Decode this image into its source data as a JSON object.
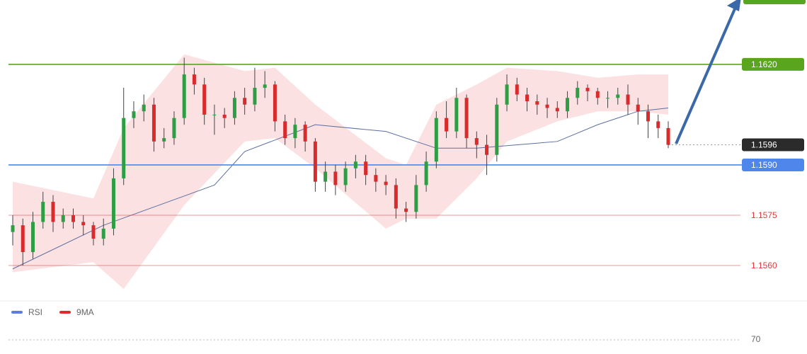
{
  "chart_data": {
    "type": "candlestick",
    "open": [
      1.157,
      1.1572,
      1.1564,
      1.1573,
      1.1579,
      1.1573,
      1.1575,
      1.1573,
      1.1572,
      1.1568,
      1.1571,
      1.1586,
      1.1604,
      1.1606,
      1.1608,
      1.1597,
      1.1598,
      1.1604,
      1.1617,
      1.1614,
      1.1605,
      1.1605,
      1.1604,
      1.161,
      1.1608,
      1.1613,
      1.1614,
      1.1603,
      1.1598,
      1.1602,
      1.1597,
      1.1585,
      1.1588,
      1.1584,
      1.1589,
      1.1591,
      1.1587,
      1.1585,
      1.1584,
      1.1577,
      1.1576,
      1.1584,
      1.1591,
      1.1604,
      1.16,
      1.161,
      1.1598,
      1.1596,
      1.1593,
      1.1608,
      1.1614,
      1.1611,
      1.1609,
      1.1608,
      1.1607,
      1.1606,
      1.161,
      1.1613,
      1.1612,
      1.161,
      1.161,
      1.1611,
      1.1608,
      1.1606,
      1.1603,
      1.1601
    ],
    "high": [
      1.1575,
      1.1574,
      1.1576,
      1.1582,
      1.1581,
      1.1577,
      1.1577,
      1.1575,
      1.1573,
      1.1574,
      1.1589,
      1.1613,
      1.1609,
      1.1611,
      1.161,
      1.1601,
      1.1606,
      1.1622,
      1.1619,
      1.1616,
      1.1608,
      1.1607,
      1.1612,
      1.1613,
      1.1619,
      1.1618,
      1.1615,
      1.1605,
      1.1604,
      1.1603,
      1.1598,
      1.1591,
      1.159,
      1.1591,
      1.1593,
      1.1593,
      1.1589,
      1.1587,
      1.1586,
      1.1579,
      1.1587,
      1.1594,
      1.1606,
      1.1609,
      1.1613,
      1.1611,
      1.16,
      1.1599,
      1.161,
      1.1617,
      1.1616,
      1.1613,
      1.1611,
      1.161,
      1.1609,
      1.1612,
      1.1615,
      1.1614,
      1.1613,
      1.1612,
      1.1613,
      1.1614,
      1.161,
      1.1608,
      1.1605,
      1.1603
    ],
    "low": [
      1.1566,
      1.156,
      1.1562,
      1.1571,
      1.157,
      1.1571,
      1.1571,
      1.1569,
      1.1566,
      1.1566,
      1.1569,
      1.1584,
      1.1601,
      1.1603,
      1.1594,
      1.1595,
      1.1596,
      1.1602,
      1.1611,
      1.1602,
      1.1599,
      1.1601,
      1.1602,
      1.1605,
      1.1606,
      1.161,
      1.16,
      1.1596,
      1.1595,
      1.1594,
      1.1582,
      1.1582,
      1.1581,
      1.1582,
      1.1586,
      1.1584,
      1.1582,
      1.1581,
      1.1574,
      1.1573,
      1.1574,
      1.1582,
      1.1589,
      1.1598,
      1.1598,
      1.1595,
      1.1592,
      1.1587,
      1.1591,
      1.1606,
      1.1609,
      1.1606,
      1.1605,
      1.1604,
      1.1604,
      1.1604,
      1.1608,
      1.1609,
      1.1608,
      1.1607,
      1.1608,
      1.1605,
      1.1602,
      1.1598,
      1.1598,
      1.1595
    ],
    "close": [
      1.1572,
      1.1564,
      1.1573,
      1.1579,
      1.1573,
      1.1575,
      1.1573,
      1.1572,
      1.1568,
      1.1571,
      1.1586,
      1.1604,
      1.1606,
      1.1608,
      1.1597,
      1.1598,
      1.1604,
      1.1617,
      1.1614,
      1.1605,
      1.1605,
      1.1604,
      1.161,
      1.1608,
      1.1613,
      1.1614,
      1.1603,
      1.1598,
      1.1602,
      1.1597,
      1.1585,
      1.1588,
      1.1584,
      1.1589,
      1.1591,
      1.1587,
      1.1585,
      1.1584,
      1.1577,
      1.1576,
      1.1584,
      1.1591,
      1.1604,
      1.16,
      1.161,
      1.1598,
      1.1596,
      1.1593,
      1.1608,
      1.1614,
      1.1611,
      1.1609,
      1.1608,
      1.1607,
      1.1606,
      1.161,
      1.1613,
      1.1612,
      1.161,
      1.161,
      1.1611,
      1.1608,
      1.1606,
      1.1603,
      1.1601,
      1.1596
    ],
    "up_color": "#2e9e44",
    "down_color": "#d92b2b",
    "bands": {
      "x": [
        0,
        8,
        11,
        17,
        23,
        26,
        30,
        37,
        39,
        42,
        46,
        49,
        54,
        58,
        62,
        65
      ],
      "upper": [
        1.1585,
        1.158,
        1.1601,
        1.1623,
        1.1618,
        1.1619,
        1.1608,
        1.1592,
        1.159,
        1.1608,
        1.1614,
        1.1619,
        1.1618,
        1.1616,
        1.1617,
        1.1617
      ],
      "lower": [
        1.1558,
        1.1561,
        1.1553,
        1.1578,
        1.1597,
        1.1598,
        1.1589,
        1.1571,
        1.1574,
        1.1574,
        1.1586,
        1.1597,
        1.1603,
        1.1606,
        1.1606,
        1.1605
      ],
      "color": "#f9c9cc"
    },
    "moving_average": {
      "x": [
        0,
        9,
        20,
        23,
        30,
        37,
        42,
        46,
        54,
        58,
        62,
        65
      ],
      "values": [
        1.1559,
        1.1572,
        1.1584,
        1.1594,
        1.1602,
        1.16,
        1.1595,
        1.1595,
        1.1597,
        1.1602,
        1.1606,
        1.1607
      ],
      "color": "#5c6f9e"
    },
    "ylim": [
      1.15505,
      1.16392
    ],
    "levels": [
      {
        "value": 1.162,
        "label": "1.1620",
        "color": "#5aa51e",
        "box": true
      },
      {
        "value": 1.1596,
        "label": "1.1596",
        "color": "#2b2b2b",
        "box": true,
        "dotted": true
      },
      {
        "value": 1.159,
        "label": "1.1590",
        "color": "#4f86ec",
        "box": true
      },
      {
        "value": 1.1575,
        "label": "1.1575",
        "color": "#e03a3a",
        "box": false
      },
      {
        "value": 1.156,
        "label": "1.1560",
        "color": "#e03a3a",
        "box": false
      }
    ],
    "indicator_legend": [
      {
        "name": "RSI",
        "color": "#5b7fd6"
      },
      {
        "name": "9MA",
        "color": "#e02b2b"
      }
    ],
    "rsi_ticks": [
      70
    ]
  }
}
